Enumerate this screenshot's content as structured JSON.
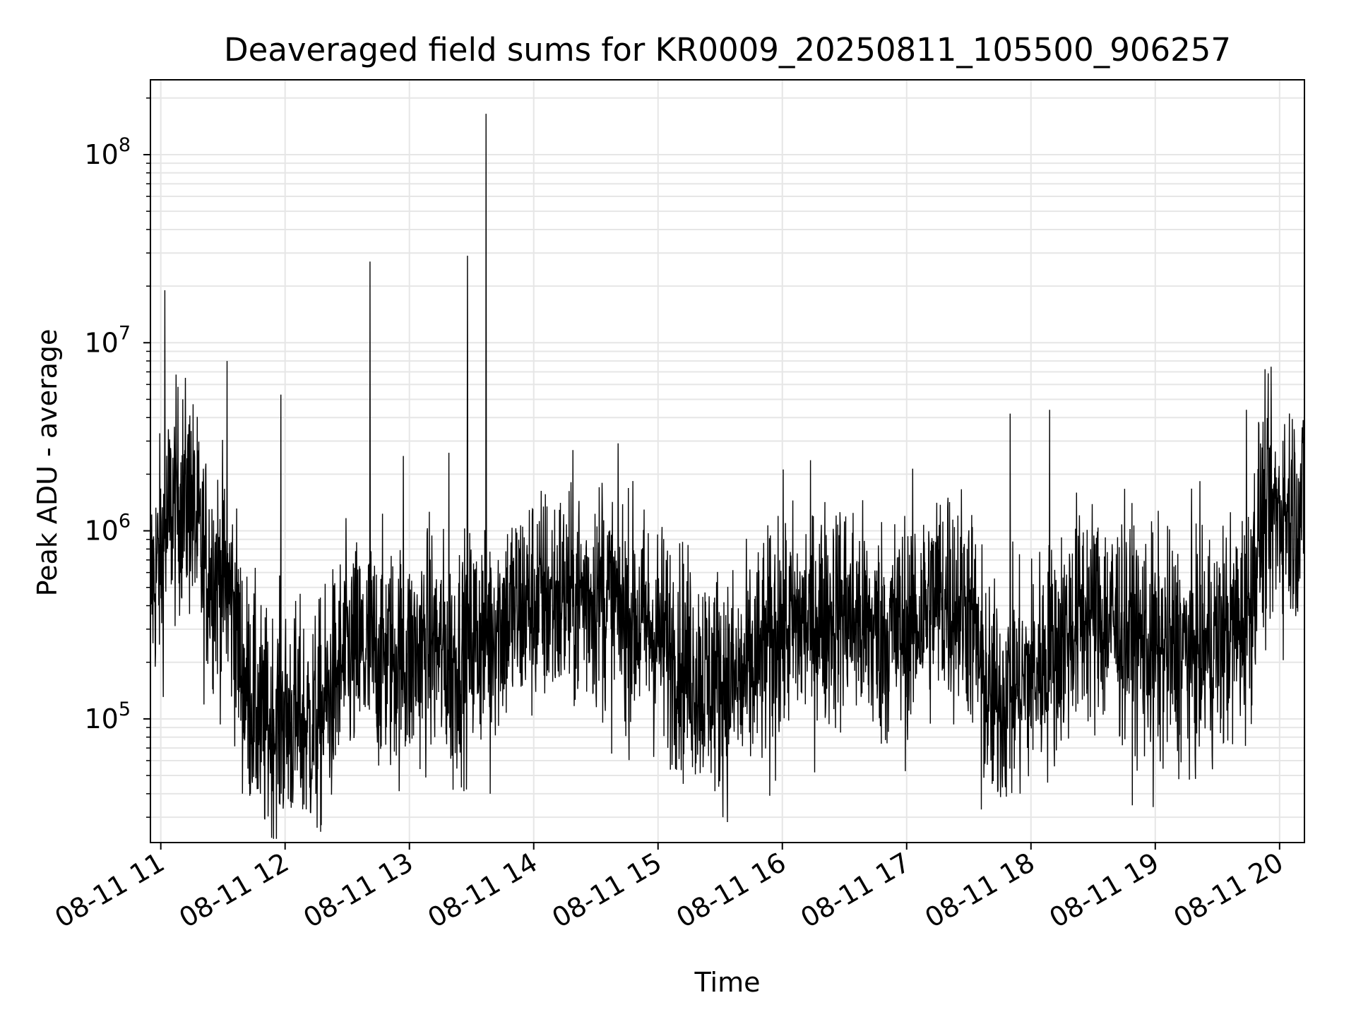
{
  "chart_data": {
    "type": "line",
    "title": "Deaveraged field sums for KR0009_20250811_105500_906257",
    "xlabel": "Time",
    "ylabel": "Peak ADU - average",
    "x_scale": "time",
    "y_scale": "log",
    "xlim": [
      "2025-08-11 10:55",
      "2025-08-11 20:12"
    ],
    "ylim": [
      22000,
      250000000
    ],
    "grid": true,
    "line_color": "#000000",
    "grid_color": "#e6e6e6",
    "x_ticks": [
      {
        "value": "2025-08-11 11:00",
        "label": "08-11 11"
      },
      {
        "value": "2025-08-11 12:00",
        "label": "08-11 12"
      },
      {
        "value": "2025-08-11 13:00",
        "label": "08-11 13"
      },
      {
        "value": "2025-08-11 14:00",
        "label": "08-11 14"
      },
      {
        "value": "2025-08-11 15:00",
        "label": "08-11 15"
      },
      {
        "value": "2025-08-11 16:00",
        "label": "08-11 16"
      },
      {
        "value": "2025-08-11 17:00",
        "label": "08-11 17"
      },
      {
        "value": "2025-08-11 18:00",
        "label": "08-11 18"
      },
      {
        "value": "2025-08-11 19:00",
        "label": "08-11 19"
      },
      {
        "value": "2025-08-11 20:00",
        "label": "08-11 20"
      }
    ],
    "y_ticks": [
      {
        "value": 100000,
        "base": "10",
        "exp": "5"
      },
      {
        "value": 1000000,
        "base": "10",
        "exp": "6"
      },
      {
        "value": 10000000,
        "base": "10",
        "exp": "7"
      },
      {
        "value": 100000000,
        "base": "10",
        "exp": "8"
      }
    ],
    "series": [
      {
        "baseline": [
          [
            "2025-08-11 10:55",
            500000
          ],
          [
            "2025-08-11 11:00",
            700000
          ],
          [
            "2025-08-11 11:05",
            1300000
          ],
          [
            "2025-08-11 11:10",
            1500000
          ],
          [
            "2025-08-11 11:15",
            1350000
          ],
          [
            "2025-08-11 11:20",
            700000
          ],
          [
            "2025-08-11 11:30",
            550000
          ],
          [
            "2025-08-11 11:35",
            400000
          ],
          [
            "2025-08-11 11:40",
            160000
          ],
          [
            "2025-08-11 11:50",
            90000
          ],
          [
            "2025-08-11 12:00",
            100000
          ],
          [
            "2025-08-11 12:15",
            90000
          ],
          [
            "2025-08-11 12:30",
            220000
          ],
          [
            "2025-08-11 12:45",
            220000
          ],
          [
            "2025-08-11 13:00",
            200000
          ],
          [
            "2025-08-11 13:10",
            260000
          ],
          [
            "2025-08-11 13:20",
            200000
          ],
          [
            "2025-08-11 13:40",
            320000
          ],
          [
            "2025-08-11 14:00",
            420000
          ],
          [
            "2025-08-11 14:30",
            460000
          ],
          [
            "2025-08-11 15:00",
            280000
          ],
          [
            "2025-08-11 15:20",
            170000
          ],
          [
            "2025-08-11 15:40",
            150000
          ],
          [
            "2025-08-11 16:00",
            300000
          ],
          [
            "2025-08-11 16:30",
            380000
          ],
          [
            "2025-08-11 16:45",
            280000
          ],
          [
            "2025-08-11 17:00",
            300000
          ],
          [
            "2025-08-11 17:15",
            450000
          ],
          [
            "2025-08-11 17:30",
            400000
          ],
          [
            "2025-08-11 17:40",
            120000
          ],
          [
            "2025-08-11 17:55",
            150000
          ],
          [
            "2025-08-11 18:10",
            220000
          ],
          [
            "2025-08-11 18:25",
            380000
          ],
          [
            "2025-08-11 18:45",
            300000
          ],
          [
            "2025-08-11 19:00",
            230000
          ],
          [
            "2025-08-11 19:20",
            230000
          ],
          [
            "2025-08-11 19:30",
            250000
          ],
          [
            "2025-08-11 19:45",
            350000
          ],
          [
            "2025-08-11 19:50",
            1050000
          ],
          [
            "2025-08-11 20:00",
            1300000
          ],
          [
            "2025-08-11 20:12",
            1300000
          ]
        ],
        "spikes": [
          [
            "2025-08-11 11:02",
            19000000
          ],
          [
            "2025-08-11 11:14",
            4100000
          ],
          [
            "2025-08-11 11:32",
            8000000
          ],
          [
            "2025-08-11 11:58",
            5300000
          ],
          [
            "2025-08-11 12:41",
            27000000
          ],
          [
            "2025-08-11 12:57",
            2500000
          ],
          [
            "2025-08-11 13:19",
            2600000
          ],
          [
            "2025-08-11 13:28",
            29000000
          ],
          [
            "2025-08-11 13:37",
            165000000
          ],
          [
            "2025-08-11 14:33",
            1800000
          ],
          [
            "2025-08-11 15:58",
            1200000
          ],
          [
            "2025-08-11 17:20",
            1500000
          ],
          [
            "2025-08-11 17:50",
            4200000
          ],
          [
            "2025-08-11 18:09",
            4400000
          ],
          [
            "2025-08-11 19:44",
            4400000
          ],
          [
            "2025-08-11 19:52",
            3800000
          ]
        ],
        "dips": [
          [
            "2025-08-11 11:48",
            40000
          ],
          [
            "2025-08-11 13:21",
            42000
          ],
          [
            "2025-08-11 13:39",
            40000
          ],
          [
            "2025-08-11 15:54",
            39000
          ],
          [
            "2025-08-11 17:36",
            33000
          ],
          [
            "2025-08-11 18:59",
            34000
          ]
        ]
      }
    ]
  }
}
